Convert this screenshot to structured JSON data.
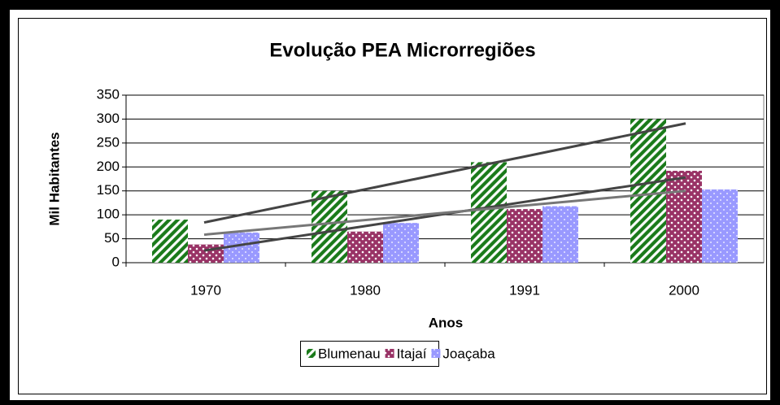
{
  "chart_data": {
    "type": "bar",
    "title": "Evolução PEA Microrregiões",
    "x_label": "Anos",
    "y_label": "Mil Habitantes",
    "categories": [
      "1970",
      "1980",
      "1991",
      "2000"
    ],
    "series": [
      {
        "name": "Blumenau",
        "color": "#1a7a1a",
        "values": [
          90,
          150,
          210,
          300
        ]
      },
      {
        "name": "Itajaí",
        "color": "#993366",
        "values": [
          38,
          65,
          112,
          192
        ]
      },
      {
        "name": "Joaçaba",
        "color": "#9999ff",
        "values": [
          63,
          83,
          118,
          153
        ]
      }
    ],
    "ylim": [
      0,
      350
    ],
    "yticks": [
      0,
      50,
      100,
      150,
      200,
      250,
      300,
      350
    ],
    "grid": true,
    "trendline": true,
    "legend": "bottom"
  }
}
